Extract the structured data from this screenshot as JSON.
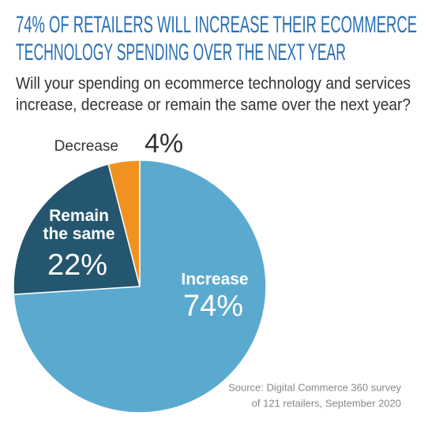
{
  "chart_data": {
    "type": "pie",
    "title": [
      "74% OF RETAILERS WILL INCREASE THEIR ECOMMERCE",
      "TECHNOLOGY SPENDING OVER THE NEXT YEAR"
    ],
    "subtitle": [
      "Will your spending on ecommerce technology and services",
      "increase, decrease or remain the same over the next year?"
    ],
    "categories": [
      "Increase",
      "Remain the same",
      "Decrease"
    ],
    "values": [
      74,
      22,
      4
    ],
    "value_labels": [
      "74%",
      "22%",
      "4%"
    ],
    "colors": [
      "#5aaad0",
      "#25566f",
      "#f0921f"
    ],
    "source": [
      "Source: Digital Commerce 360 survey",
      "of 121 retailers, September 2020"
    ]
  }
}
